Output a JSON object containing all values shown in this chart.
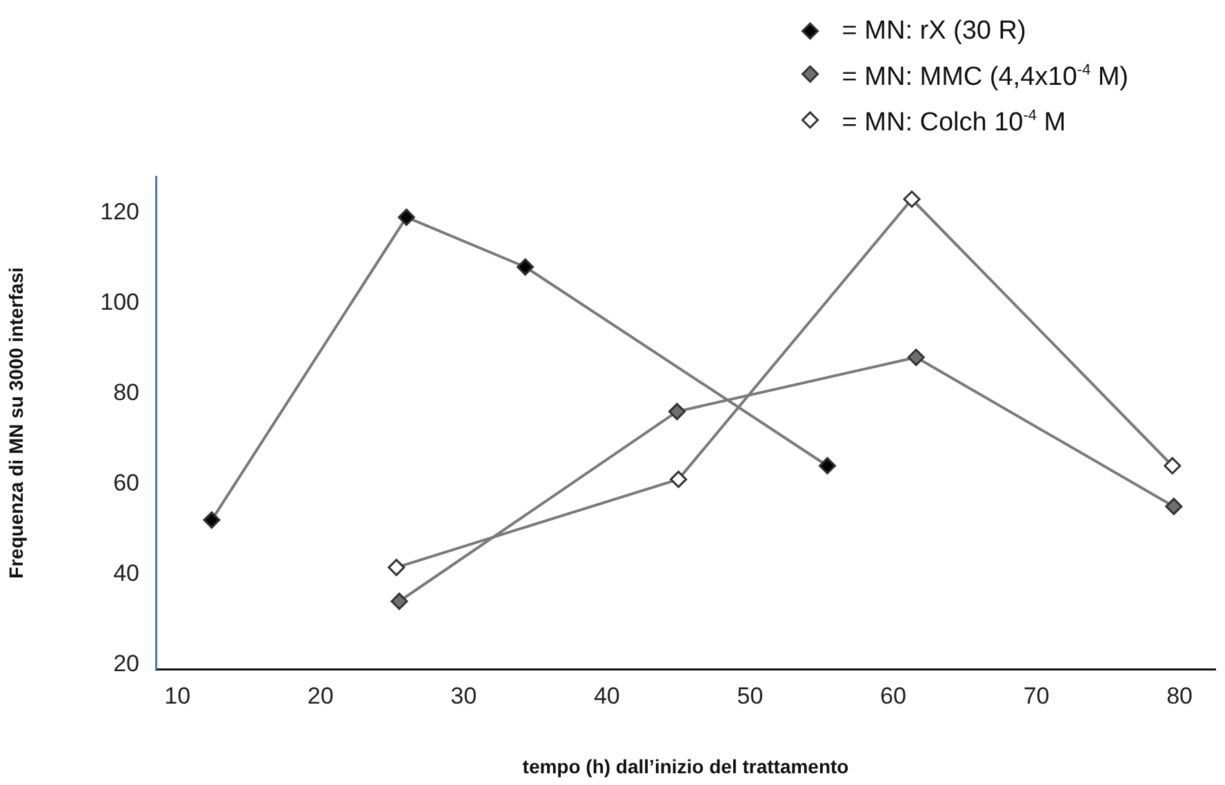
{
  "chart_data": {
    "type": "line",
    "xlabel": "tempo (h) dall’inizio del trattamento",
    "ylabel": "Frequenza di MN su 3000 interfasi",
    "xlim": [
      8.5,
      82.5
    ],
    "xticks": [
      10,
      20,
      30,
      40,
      50,
      60,
      70,
      80
    ],
    "ylim": [
      19,
      128
    ],
    "yticks": [
      20,
      40,
      60,
      80,
      100,
      120
    ],
    "grid": false,
    "legend": "top right",
    "marker": "diamond",
    "line_style": "solid",
    "series": [
      {
        "name": "= MN: rX (30 R)",
        "color": "#000000",
        "x": [
          12.4,
          26,
          34.3,
          55.4
        ],
        "values": [
          52,
          119,
          108,
          64
        ]
      },
      {
        "name": "= MN: MMC (4,4x10$^{-4}$ M)",
        "color": "#707070",
        "x": [
          25.5,
          44.9,
          61.6,
          79.6
        ],
        "values": [
          34,
          76,
          88,
          55
        ]
      },
      {
        "name": "= MN: Colch 10$^{-4}$ M",
        "color": "#ffffff",
        "x": [
          25.3,
          45,
          61.3,
          79.5
        ],
        "values": [
          41.5,
          61,
          123,
          64
        ]
      }
    ]
  }
}
